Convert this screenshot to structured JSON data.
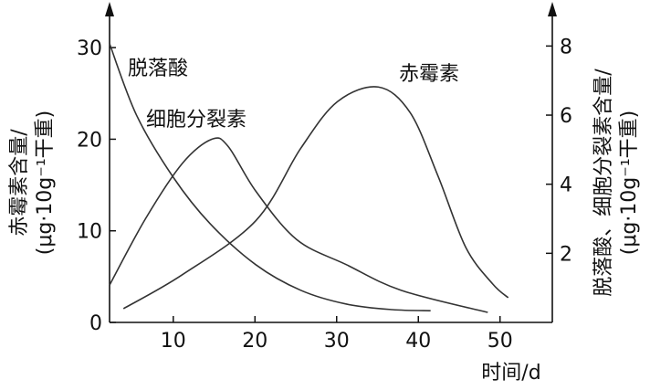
{
  "chart_data": {
    "type": "line",
    "x_label": "时间/d",
    "y_label": [
      "赤霉素含量/",
      "(μg·10g⁻¹干重)"
    ],
    "y2_label": [
      "脱落酸、细胞分裂素含量/",
      "(μg·10g⁻¹干重)"
    ],
    "xlim": [
      2.2,
      56.4
    ],
    "xticks": [
      10,
      20,
      30,
      40,
      50
    ],
    "ylim": [
      0,
      34.7
    ],
    "yticks": [
      0,
      10,
      20,
      30
    ],
    "y2lim": [
      0,
      9.2
    ],
    "y2ticks": [
      2,
      4,
      6,
      8
    ],
    "series": [
      {
        "name": "脱落酸",
        "color": "#333333",
        "axis": "y2",
        "x": [
          2.2,
          5.5,
          10,
          14.5,
          20.1,
          25.6,
          31.2,
          36.8,
          41.5
        ],
        "values": [
          8.07,
          6.0,
          4.2,
          2.86,
          1.67,
          0.93,
          0.53,
          0.37,
          0.34
        ]
      },
      {
        "name": "细胞分裂素",
        "color": "#333333",
        "axis": "y2",
        "x": [
          2.2,
          6.6,
          11.1,
          14.7,
          16.7,
          20.1,
          25.1,
          31.2,
          37.9,
          48.5
        ],
        "values": [
          1.08,
          3.0,
          4.6,
          5.3,
          5.1,
          3.8,
          2.4,
          1.67,
          0.93,
          0.29
        ]
      },
      {
        "name": "赤霉素",
        "color": "#333333",
        "x": [
          3.9,
          11.1,
          20.1,
          25.6,
          30.1,
          35.1,
          39,
          42.4,
          45.8,
          49.1,
          51
        ],
        "values": [
          1.5,
          5.2,
          11.1,
          19,
          24.1,
          25.7,
          22.9,
          16,
          8.2,
          4.2,
          2.7
        ]
      }
    ]
  }
}
